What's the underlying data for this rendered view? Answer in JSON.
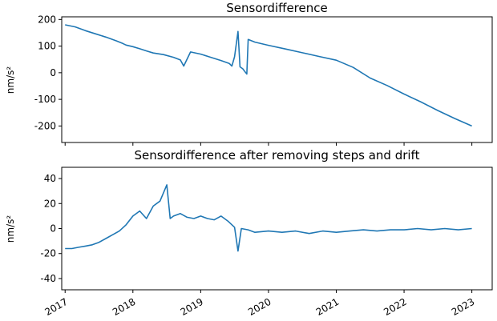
{
  "figure": {
    "background": "#ffffff",
    "line_color": "#1f77b4"
  },
  "chart_data": [
    {
      "type": "line",
      "title": "Sensordifference",
      "ylabel": "nm/s²",
      "xlabel": "",
      "x_ticks": [
        "2017",
        "2018",
        "2019",
        "2020",
        "2021",
        "2022",
        "2023"
      ],
      "x_tick_labels_shown": false,
      "y_ticks": [
        200,
        100,
        0,
        -100,
        -200
      ],
      "xlim": [
        2016.95,
        2023.3
      ],
      "ylim": [
        -262,
        210
      ],
      "grid": false,
      "series": [
        {
          "x": [
            2017.0,
            2017.15,
            2017.3,
            2017.45,
            2017.6,
            2017.75,
            2017.85,
            2017.9,
            2018.0,
            2018.1,
            2018.2,
            2018.3,
            2018.45,
            2018.6,
            2018.7,
            2018.75,
            2018.85,
            2019.0,
            2019.15,
            2019.3,
            2019.42,
            2019.46,
            2019.5,
            2019.55,
            2019.58,
            2019.62,
            2019.65,
            2019.68,
            2019.7,
            2019.8,
            2020.0,
            2020.25,
            2020.5,
            2020.75,
            2021.0,
            2021.25,
            2021.5,
            2021.75,
            2022.0,
            2022.25,
            2022.5,
            2022.75,
            2023.0
          ],
          "values": [
            180,
            172,
            158,
            146,
            134,
            120,
            110,
            104,
            98,
            90,
            82,
            74,
            68,
            58,
            48,
            25,
            78,
            70,
            58,
            46,
            35,
            25,
            60,
            155,
            22,
            15,
            5,
            -5,
            125,
            115,
            103,
            89,
            75,
            61,
            47,
            20,
            -20,
            -48,
            -80,
            -110,
            -142,
            -172,
            -200
          ]
        }
      ]
    },
    {
      "type": "line",
      "title": "Sensordifference after removing steps and drift",
      "ylabel": "nm/s²",
      "xlabel": "",
      "x_ticks": [
        "2017",
        "2018",
        "2019",
        "2020",
        "2021",
        "2022",
        "2023"
      ],
      "y_ticks": [
        40,
        20,
        0,
        -20,
        -40
      ],
      "xlim": [
        2016.95,
        2023.3
      ],
      "ylim": [
        -49,
        49
      ],
      "grid": false,
      "series": [
        {
          "x": [
            2017.0,
            2017.1,
            2017.2,
            2017.3,
            2017.4,
            2017.5,
            2017.6,
            2017.7,
            2017.8,
            2017.9,
            2018.0,
            2018.1,
            2018.2,
            2018.3,
            2018.4,
            2018.5,
            2018.55,
            2018.6,
            2018.7,
            2018.8,
            2018.9,
            2019.0,
            2019.1,
            2019.2,
            2019.3,
            2019.4,
            2019.5,
            2019.55,
            2019.6,
            2019.7,
            2019.8,
            2020.0,
            2020.2,
            2020.4,
            2020.6,
            2020.8,
            2021.0,
            2021.2,
            2021.4,
            2021.6,
            2021.8,
            2022.0,
            2022.2,
            2022.4,
            2022.6,
            2022.8,
            2023.0
          ],
          "values": [
            -16,
            -16,
            -15,
            -14,
            -13,
            -11,
            -8,
            -5,
            -2,
            3,
            10,
            14,
            8,
            18,
            22,
            35,
            8,
            10,
            12,
            9,
            8,
            10,
            8,
            7,
            10,
            6,
            1,
            -18,
            0,
            -1,
            -3,
            -2,
            -3,
            -2,
            -4,
            -2,
            -3,
            -2,
            -1,
            -2,
            -1,
            -1,
            0,
            -1,
            0,
            -1,
            0
          ]
        }
      ]
    }
  ]
}
